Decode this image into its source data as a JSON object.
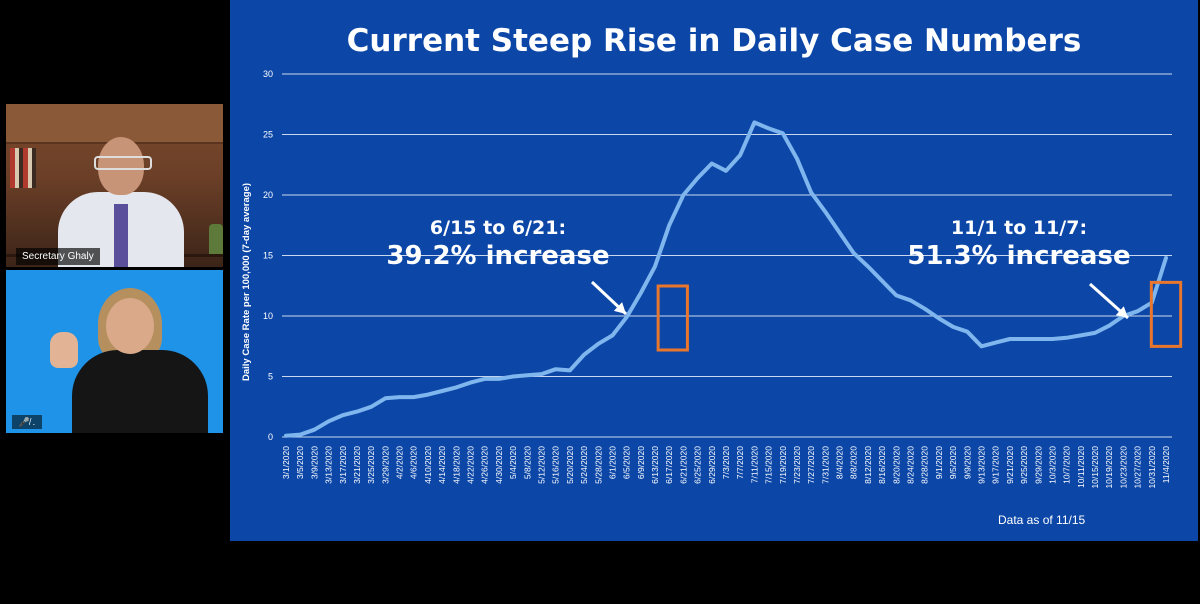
{
  "participants": {
    "speaker_name": "Secretary Ghaly",
    "interpreter_status": "🎤̸ ."
  },
  "slide": {
    "title": "Current Steep Rise in Daily Case Numbers",
    "annotation_june": {
      "range": "6/15 to 6/21:",
      "change": "39.2% increase"
    },
    "annotation_nov": {
      "range": "11/1 to 11/7:",
      "change": "51.3% increase"
    },
    "data_note": "Data as of 11/15",
    "colors": {
      "background": "#0c47a8",
      "line": "#7fb6ee",
      "highlight_box": "#e8762c",
      "gridline": "#dfe8f5"
    }
  },
  "chart_data": {
    "type": "line",
    "title": "",
    "ylabel": "Daily Case Rate per 100,000 (7-day average)",
    "xlabel": "",
    "ylim": [
      0,
      30
    ],
    "yticks": [
      0,
      5,
      10,
      15,
      20,
      25,
      30
    ],
    "grid": true,
    "xticks": [
      "3/1/2020",
      "3/5/2020",
      "3/9/2020",
      "3/13/2020",
      "3/17/2020",
      "3/21/2020",
      "3/25/2020",
      "3/29/2020",
      "4/2/2020",
      "4/6/2020",
      "4/10/2020",
      "4/14/2020",
      "4/18/2020",
      "4/22/2020",
      "4/26/2020",
      "4/30/2020",
      "5/4/2020",
      "5/8/2020",
      "5/12/2020",
      "5/16/2020",
      "5/20/2020",
      "5/24/2020",
      "5/28/2020",
      "6/1/2020",
      "6/5/2020",
      "6/9/2020",
      "6/13/2020",
      "6/17/2020",
      "6/21/2020",
      "6/25/2020",
      "6/29/2020",
      "7/3/2020",
      "7/7/2020",
      "7/11/2020",
      "7/15/2020",
      "7/19/2020",
      "7/23/2020",
      "7/27/2020",
      "7/31/2020",
      "8/4/2020",
      "8/8/2020",
      "8/12/2020",
      "8/16/2020",
      "8/20/2020",
      "8/24/2020",
      "8/28/2020",
      "9/1/2020",
      "9/5/2020",
      "9/9/2020",
      "9/13/2020",
      "9/17/2020",
      "9/21/2020",
      "9/25/2020",
      "9/29/2020",
      "10/3/2020",
      "10/7/2020",
      "10/11/2020",
      "10/15/2020",
      "10/19/2020",
      "10/23/2020",
      "10/27/2020",
      "10/31/2020",
      "11/4/2020"
    ],
    "series": [
      {
        "values": [
          0.1,
          0.2,
          0.6,
          1.3,
          1.8,
          2.1,
          2.5,
          3.2,
          3.3,
          3.3,
          3.5,
          3.8,
          4.1,
          4.5,
          4.8,
          4.8,
          5.0,
          5.1,
          5.2,
          5.6,
          5.5,
          6.8,
          7.7,
          8.4,
          9.9,
          11.9,
          14.1,
          17.5,
          20.0,
          21.4,
          22.6,
          22.0,
          23.3,
          26.0,
          25.5,
          25.1,
          23.0,
          20.2,
          18.6,
          16.9,
          15.2,
          14.1,
          12.9,
          11.7,
          11.3,
          10.6,
          9.8,
          9.1,
          8.7,
          7.5,
          7.8,
          8.1,
          8.1,
          8.1,
          8.1,
          8.2,
          8.4,
          8.6,
          9.2,
          10.0,
          10.4,
          11.1,
          14.8
        ]
      }
    ],
    "highlights": [
      {
        "start": "6/15/2020",
        "end": "6/21/2020"
      },
      {
        "start": "11/1/2020",
        "end": "11/7/2020"
      }
    ]
  }
}
